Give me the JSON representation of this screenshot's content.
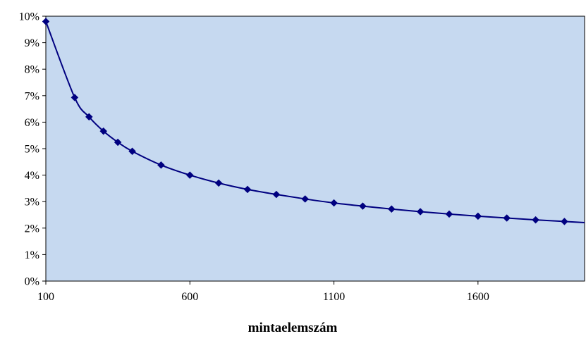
{
  "chart_data": {
    "type": "line",
    "title": "",
    "xlabel": "mintaelemszám",
    "ylabel": "",
    "xlim": [
      100,
      1970
    ],
    "ylim": [
      0,
      10
    ],
    "xticks": [
      100,
      600,
      1100,
      1600
    ],
    "xtick_labels": [
      "100",
      "600",
      "1100",
      "1600"
    ],
    "yticks": [
      0,
      1,
      2,
      3,
      4,
      5,
      6,
      7,
      8,
      9,
      10
    ],
    "ytick_labels": [
      "0%",
      "1%",
      "2%",
      "3%",
      "4%",
      "5%",
      "6%",
      "7%",
      "8%",
      "9%",
      "10%"
    ],
    "grid": false,
    "legend": "none",
    "plot_background": "#c6d9f0",
    "line_color": "#000080",
    "marker": "diamond",
    "series": [
      {
        "x": [
          100,
          200,
          250,
          300,
          350,
          400,
          500,
          600,
          700,
          800,
          900,
          1000,
          1100,
          1200,
          1300,
          1400,
          1500,
          1600,
          1700,
          1800,
          1900,
          2000
        ],
        "y": [
          9.8,
          6.93,
          6.2,
          5.66,
          5.24,
          4.9,
          4.38,
          4.0,
          3.7,
          3.46,
          3.27,
          3.1,
          2.95,
          2.83,
          2.72,
          2.62,
          2.53,
          2.45,
          2.38,
          2.31,
          2.25,
          2.19
        ]
      }
    ]
  }
}
